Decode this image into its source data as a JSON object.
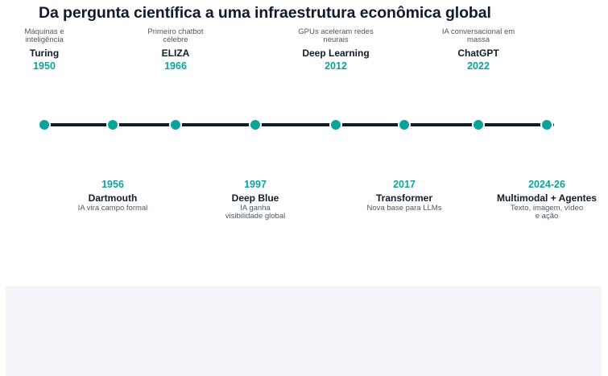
{
  "title": "Da pergunta científica a uma infraestrutura econômica global",
  "colors": {
    "accent": "#0aa39c",
    "line": "#0f1c2b",
    "text": "#0f1c2b",
    "muted": "#4c5864",
    "panel": "#f3f5f8"
  },
  "events": [
    {
      "year": "1950",
      "name": "Turing",
      "desc": "Máquinas e inteligência"
    },
    {
      "year": "1956",
      "name": "Dartmouth",
      "desc": "IA vira campo formal"
    },
    {
      "year": "1966",
      "name": "ELIZA",
      "desc": "Primeiro chatbot célebre"
    },
    {
      "year": "1997",
      "name": "Deep Blue",
      "desc": "IA ganha visibilidade global"
    },
    {
      "year": "2012",
      "name": "Deep Learning",
      "desc": "GPUs aceleram redes neurais"
    },
    {
      "year": "2017",
      "name": "Transformer",
      "desc": "Nova base para LLMs"
    },
    {
      "year": "2022",
      "name": "ChatGPT",
      "desc": "IA conversacional em massa"
    },
    {
      "year": "2024-26",
      "name": "Multimodal + Agentes",
      "desc": "Texto, imagem, vídeo e ação"
    }
  ]
}
